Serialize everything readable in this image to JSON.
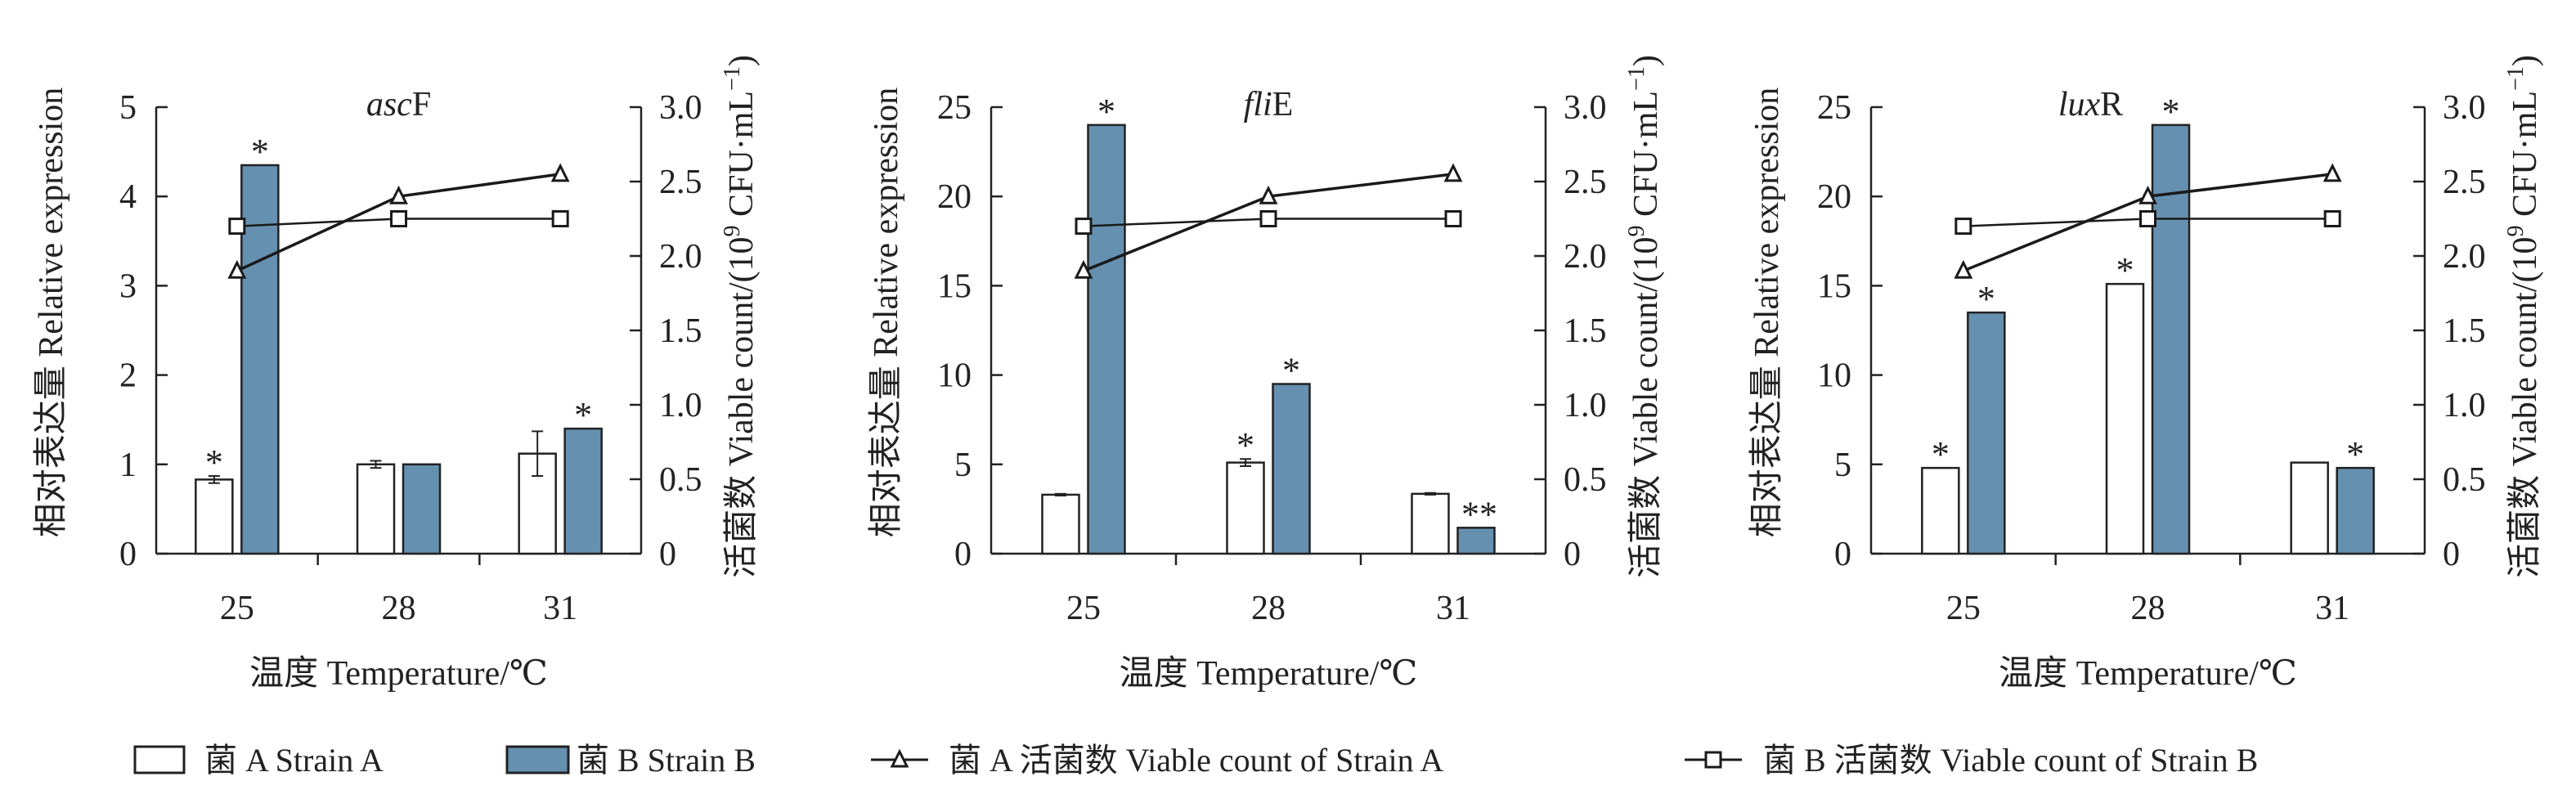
{
  "colors": {
    "strain_a_fill": "#ffffff",
    "strain_b_fill": "#6690b0",
    "line": "#1a1a1a"
  },
  "chart_data": [
    {
      "type": "bar+line",
      "title_italic": "asc",
      "title_rest": "F",
      "categories": [
        "25",
        "28",
        "31"
      ],
      "xlabel": "温度 Temperature/℃",
      "ylabel": "相对表达量 Relative expression",
      "ylim": [
        0,
        5
      ],
      "yticks": [
        "0",
        "1",
        "2",
        "3",
        "4",
        "5"
      ],
      "ytick_values": [
        0,
        1,
        2,
        3,
        4,
        5
      ],
      "y2label": {
        "pre": "活菌数 Viable count/(10",
        "sup1": "9",
        "mid": " CFU·mL",
        "sup2": "−1",
        "post": ")"
      },
      "y2lim": [
        0,
        3.0
      ],
      "y2ticks": [
        "0",
        "0.5",
        "1.0",
        "1.5",
        "2.0",
        "2.5",
        "3.0"
      ],
      "y2tick_values": [
        0,
        0.5,
        1,
        1.5,
        2,
        2.5,
        3
      ],
      "bars": [
        {
          "name": "菌 A Strain A",
          "values": [
            0.83,
            1.0,
            1.12
          ],
          "errors": [
            0.04,
            0.04,
            0.25
          ],
          "stars": [
            "*",
            "",
            ""
          ]
        },
        {
          "name": "菌 B Strain B",
          "values": [
            4.35,
            1.0,
            1.4
          ],
          "errors": [
            0,
            0,
            0
          ],
          "stars": [
            "*",
            "",
            "*"
          ]
        }
      ],
      "lines": [
        {
          "name": "菌 A 活菌数 Viable count of Strain A",
          "marker": "triangle",
          "values": [
            1.9,
            2.4,
            2.55
          ]
        },
        {
          "name": "菌 B 活菌数 Viable count of Strain B",
          "marker": "square",
          "values": [
            2.2,
            2.25,
            2.25
          ]
        }
      ]
    },
    {
      "type": "bar+line",
      "title_italic": "fli",
      "title_rest": "E",
      "categories": [
        "25",
        "28",
        "31"
      ],
      "xlabel": "温度 Temperature/℃",
      "ylabel": "相对表达量 Relative expression",
      "ylim": [
        0,
        25
      ],
      "yticks": [
        "0",
        "5",
        "10",
        "15",
        "20",
        "25"
      ],
      "ytick_values": [
        0,
        5,
        10,
        15,
        20,
        25
      ],
      "y2label": {
        "pre": "活菌数 Viable count/(10",
        "sup1": "9",
        "mid": " CFU·mL",
        "sup2": "−1",
        "post": ")"
      },
      "y2lim": [
        0,
        3.0
      ],
      "y2ticks": [
        "0",
        "0.5",
        "1.0",
        "1.5",
        "2.0",
        "2.5",
        "3.0"
      ],
      "y2tick_values": [
        0,
        0.5,
        1,
        1.5,
        2,
        2.5,
        3
      ],
      "bars": [
        {
          "name": "菌 A Strain A",
          "values": [
            3.3,
            5.1,
            3.35
          ],
          "errors": [
            0.05,
            0.2,
            0.05
          ],
          "stars": [
            "",
            "*",
            ""
          ]
        },
        {
          "name": "菌 B Strain B",
          "values": [
            24.0,
            9.5,
            1.45
          ],
          "errors": [
            0,
            0,
            0
          ],
          "stars": [
            "*",
            "*",
            "**"
          ]
        }
      ],
      "lines": [
        {
          "name": "菌 A 活菌数 Viable count of Strain A",
          "marker": "triangle",
          "values": [
            1.9,
            2.4,
            2.55
          ]
        },
        {
          "name": "菌 B 活菌数 Viable count of Strain B",
          "marker": "square",
          "values": [
            2.2,
            2.25,
            2.25
          ]
        }
      ]
    },
    {
      "type": "bar+line",
      "title_italic": "lux",
      "title_rest": "R",
      "categories": [
        "25",
        "28",
        "31"
      ],
      "xlabel": "温度 Temperature/℃",
      "ylabel": "相对表达量 Relative expression",
      "ylim": [
        0,
        25
      ],
      "yticks": [
        "0",
        "5",
        "10",
        "15",
        "20",
        "25"
      ],
      "ytick_values": [
        0,
        5,
        10,
        15,
        20,
        25
      ],
      "y2label": {
        "pre": "活菌数 Viable count/(10",
        "sup1": "9",
        "mid": " CFU·mL",
        "sup2": "−1",
        "post": ")"
      },
      "y2lim": [
        0,
        3.0
      ],
      "y2ticks": [
        "0",
        "0.5",
        "1.0",
        "1.5",
        "2.0",
        "2.5",
        "3.0"
      ],
      "y2tick_values": [
        0,
        0.5,
        1,
        1.5,
        2,
        2.5,
        3
      ],
      "bars": [
        {
          "name": "菌 A Strain A",
          "values": [
            4.8,
            15.1,
            5.1
          ],
          "errors": [
            0,
            0,
            0
          ],
          "stars": [
            "*",
            "*",
            ""
          ]
        },
        {
          "name": "菌 B Strain B",
          "values": [
            13.5,
            24.0,
            4.8
          ],
          "errors": [
            0,
            0,
            0
          ],
          "stars": [
            "*",
            "*",
            "*"
          ]
        }
      ],
      "lines": [
        {
          "name": "菌 A 活菌数 Viable count of Strain A",
          "marker": "triangle",
          "values": [
            1.9,
            2.4,
            2.55
          ]
        },
        {
          "name": "菌 B 活菌数 Viable count of Strain B",
          "marker": "square",
          "values": [
            2.2,
            2.25,
            2.25
          ]
        }
      ]
    }
  ],
  "legend": [
    {
      "label": "菌 A Strain A",
      "kind": "box-a"
    },
    {
      "label": "菌 B Strain B",
      "kind": "box-b"
    },
    {
      "label": "菌 A 活菌数 Viable count of Strain A",
      "kind": "line-triangle"
    },
    {
      "label": "菌 B 活菌数 Viable count of Strain B",
      "kind": "line-square"
    }
  ]
}
